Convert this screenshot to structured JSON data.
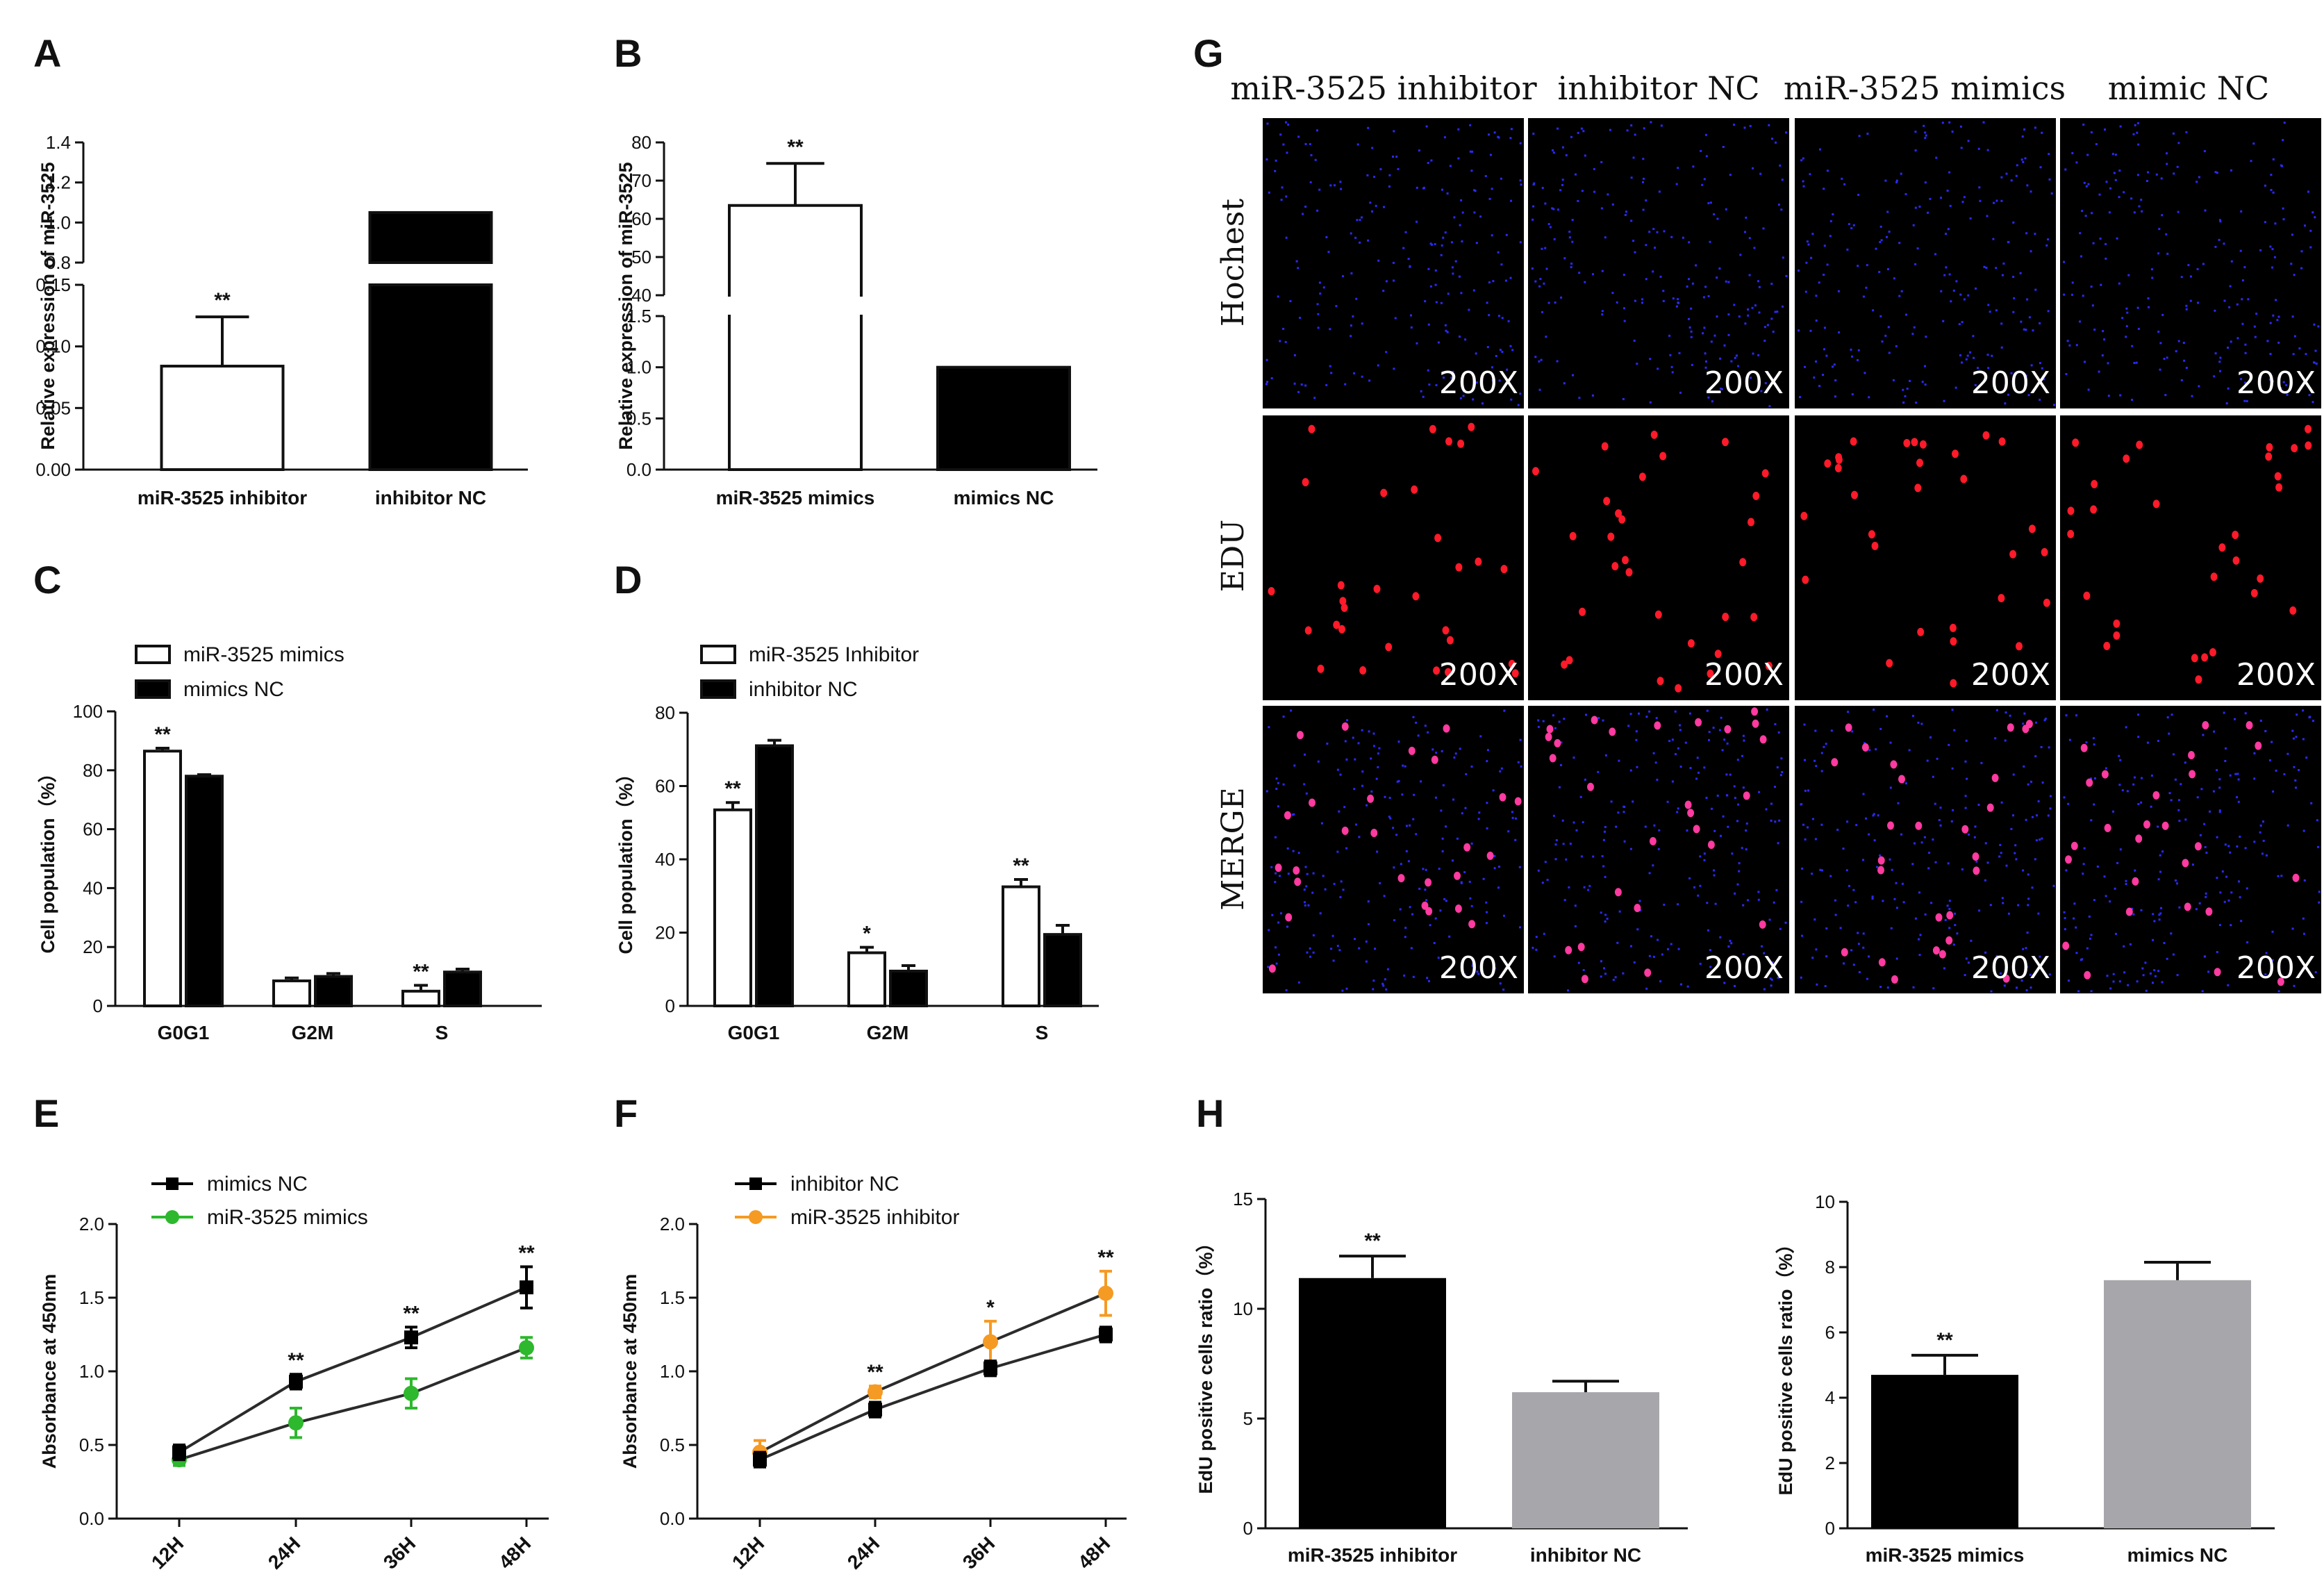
{
  "panel_labels": [
    "A",
    "B",
    "C",
    "D",
    "E",
    "F",
    "G",
    "H"
  ],
  "chart_data": [
    {
      "id": "A",
      "type": "bar",
      "broken_axis": true,
      "ylabel": "Relative expression of miR-3525",
      "categories": [
        "miR-3525 inhibitor",
        "inhibitor NC"
      ],
      "values": [
        0.084,
        1.05
      ],
      "errors": [
        0.04,
        0
      ],
      "fills": [
        "#ffffff",
        "#000000"
      ],
      "lower_ylim": [
        0,
        0.15
      ],
      "upper_ylim": [
        0.8,
        1.4
      ],
      "lower_ticks": [
        "0.00",
        "0.05",
        "0.10",
        "0.15"
      ],
      "upper_ticks": [
        "0.8",
        "1.0",
        "1.2",
        "1.4"
      ],
      "annotations": [
        "**",
        ""
      ]
    },
    {
      "id": "B",
      "type": "bar",
      "broken_axis": true,
      "ylabel": "Relative expression of miR-3525",
      "categories": [
        "miR-3525 mimics",
        "mimics NC"
      ],
      "values": [
        63.5,
        1.0
      ],
      "errors": [
        11,
        0
      ],
      "fills": [
        "#ffffff",
        "#000000"
      ],
      "lower_ylim": [
        0,
        1.5
      ],
      "upper_ylim": [
        40,
        80
      ],
      "lower_ticks": [
        "0.0",
        "0.5",
        "1.0",
        "1.5"
      ],
      "upper_ticks": [
        "40",
        "50",
        "60",
        "70",
        "80"
      ],
      "annotations": [
        "**",
        ""
      ]
    },
    {
      "id": "C",
      "type": "bar",
      "ylabel": "Cell population（%）",
      "categories": [
        "G0G1",
        "G2M",
        "S"
      ],
      "series": [
        {
          "name": "miR-3525 mimics",
          "values": [
            86.5,
            8.5,
            5
          ],
          "errors": [
            1,
            1,
            2
          ],
          "fill": "#ffffff"
        },
        {
          "name": "mimics NC",
          "values": [
            78,
            10,
            11.5
          ],
          "errors": [
            0.5,
            1,
            1
          ],
          "fill": "#000000"
        }
      ],
      "ylim": [
        0,
        100
      ],
      "yticks": [
        "0",
        "20",
        "40",
        "60",
        "80",
        "100"
      ],
      "annotations": [
        {
          "series": 0,
          "index": 0,
          "text": "**"
        },
        {
          "series": 0,
          "index": 2,
          "text": "**"
        }
      ]
    },
    {
      "id": "D",
      "type": "bar",
      "ylabel": "Cell population（%）",
      "categories": [
        "G0G1",
        "G2M",
        "S"
      ],
      "series": [
        {
          "name": "miR-3525 Inhibitor",
          "values": [
            53.5,
            14.5,
            32.5
          ],
          "errors": [
            2,
            1.5,
            2
          ],
          "fill": "#ffffff"
        },
        {
          "name": "inhibitor NC",
          "values": [
            71,
            9.5,
            19.5
          ],
          "errors": [
            1.5,
            1.5,
            2.5
          ],
          "fill": "#000000"
        }
      ],
      "ylim": [
        0,
        80
      ],
      "yticks": [
        "0",
        "20",
        "40",
        "60",
        "80"
      ],
      "annotations": [
        {
          "series": 0,
          "index": 0,
          "text": "**"
        },
        {
          "series": 0,
          "index": 1,
          "text": "*"
        },
        {
          "series": 0,
          "index": 2,
          "text": "**"
        }
      ]
    },
    {
      "id": "E",
      "type": "line",
      "ylabel": "Absorbance at 450nm",
      "x": [
        "12H",
        "24H",
        "36H",
        "48H"
      ],
      "series": [
        {
          "name": "mimics NC",
          "values": [
            0.45,
            0.93,
            1.23,
            1.57
          ],
          "errors": [
            0.05,
            0.05,
            0.07,
            0.14
          ],
          "color": "#000000",
          "marker": "square"
        },
        {
          "name": "miR-3525 mimics",
          "values": [
            0.4,
            0.65,
            0.85,
            1.16
          ],
          "errors": [
            0.04,
            0.1,
            0.1,
            0.07
          ],
          "color": "#2db82d",
          "marker": "circle"
        }
      ],
      "ylim": [
        0,
        2.0
      ],
      "yticks": [
        "0.0",
        "0.5",
        "1.0",
        "1.5",
        "2.0"
      ],
      "annotations": [
        "",
        "**",
        "**",
        "**"
      ]
    },
    {
      "id": "F",
      "type": "line",
      "ylabel": "Absorbance at 450nm",
      "x": [
        "12H",
        "24H",
        "36H",
        "48H"
      ],
      "series": [
        {
          "name": "inhibitor NC",
          "values": [
            0.4,
            0.74,
            1.02,
            1.25
          ],
          "errors": [
            0.05,
            0.05,
            0.05,
            0.05
          ],
          "color": "#000000",
          "marker": "square"
        },
        {
          "name": "miR-3525 inhibitor",
          "values": [
            0.45,
            0.86,
            1.2,
            1.53
          ],
          "errors": [
            0.08,
            0.04,
            0.14,
            0.15
          ],
          "color": "#f59a23",
          "marker": "circle"
        }
      ],
      "ylim": [
        0,
        2.0
      ],
      "yticks": [
        "0.0",
        "0.5",
        "1.0",
        "1.5",
        "2.0"
      ],
      "annotations": [
        "",
        "**",
        "*",
        "**"
      ]
    },
    {
      "id": "H1",
      "type": "bar",
      "ylabel": "EdU positive cells ratio（%）",
      "categories": [
        "miR-3525 inhibitor",
        "inhibitor NC"
      ],
      "values": [
        11.4,
        6.2
      ],
      "errors": [
        1.0,
        0.5
      ],
      "fills": [
        "#000000",
        "#a7a7ab"
      ],
      "ylim": [
        0,
        15
      ],
      "yticks": [
        "0",
        "5",
        "10",
        "15"
      ],
      "annotations": [
        "**",
        ""
      ]
    },
    {
      "id": "H2",
      "type": "bar",
      "ylabel": "EdU positive cells ratio（%）",
      "categories": [
        "miR-3525 mimics",
        "mimics NC"
      ],
      "values": [
        4.7,
        7.6
      ],
      "errors": [
        0.6,
        0.55
      ],
      "fills": [
        "#000000",
        "#a7a7ab"
      ],
      "ylim": [
        0,
        10
      ],
      "yticks": [
        "0",
        "2",
        "4",
        "6",
        "8",
        "10"
      ],
      "annotations": [
        "**",
        ""
      ]
    }
  ],
  "microscopy": {
    "columns": [
      "miR-3525 inhibitor",
      "inhibitor NC",
      "miR-3525 mimics",
      "mimic NC"
    ],
    "rows": [
      "Hochest",
      "EDU",
      "MERGE"
    ],
    "magnification": "200X",
    "colors": {
      "hoechst": "#2a2aff",
      "edu": "#ff1a2a",
      "merge_edu": "#ff3aa0",
      "background": "#000000"
    }
  }
}
